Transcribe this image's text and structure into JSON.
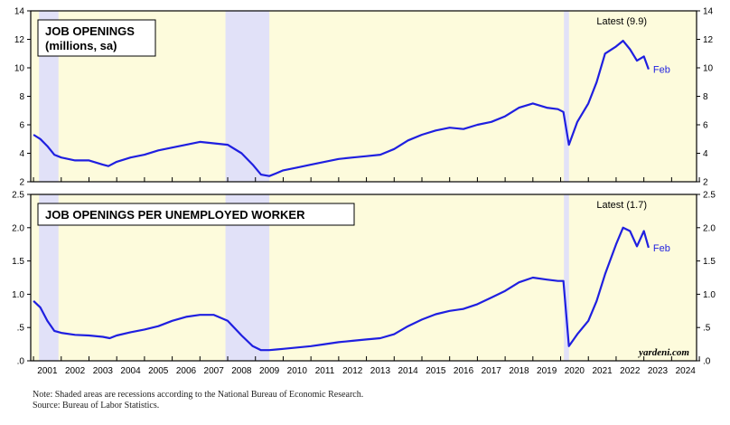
{
  "chart_data": [
    {
      "type": "line",
      "title": "JOB OPENINGS",
      "subtitle": "(millions, sa)",
      "latest_label": "Latest (9.9)",
      "end_label": "Feb",
      "ylim": [
        2,
        14
      ],
      "yticks": [
        "2",
        "4",
        "6",
        "8",
        "10",
        "12",
        "14"
      ],
      "line_color": "#1f1fe0",
      "background_color": "#fdfbdc",
      "recession_color": "#e1e1f8",
      "series": [
        {
          "x": [
            2001.0,
            2001.25,
            2001.5,
            2001.75,
            2002.0,
            2002.5,
            2003.0,
            2003.5,
            2003.7,
            2004.0,
            2004.5,
            2005.0,
            2005.5,
            2006.0,
            2006.5,
            2007.0,
            2007.5,
            2008.0,
            2008.5,
            2008.9,
            2009.2,
            2009.5,
            2009.75,
            2010.0,
            2010.5,
            2011.0,
            2011.5,
            2012.0,
            2012.5,
            2013.0,
            2013.5,
            2014.0,
            2014.5,
            2015.0,
            2015.5,
            2016.0,
            2016.5,
            2017.0,
            2017.5,
            2018.0,
            2018.5,
            2019.0,
            2019.5,
            2019.9,
            2020.1,
            2020.3,
            2020.6,
            2021.0,
            2021.3,
            2021.6,
            2022.0,
            2022.25,
            2022.5,
            2022.75,
            2023.0,
            2023.17
          ],
          "y": [
            5.3,
            5.0,
            4.5,
            3.9,
            3.7,
            3.5,
            3.5,
            3.2,
            3.1,
            3.4,
            3.7,
            3.9,
            4.2,
            4.4,
            4.6,
            4.8,
            4.7,
            4.6,
            4.0,
            3.2,
            2.5,
            2.4,
            2.6,
            2.8,
            3.0,
            3.2,
            3.4,
            3.6,
            3.7,
            3.8,
            3.9,
            4.3,
            4.9,
            5.3,
            5.6,
            5.8,
            5.7,
            6.0,
            6.2,
            6.6,
            7.2,
            7.5,
            7.2,
            7.1,
            6.9,
            4.6,
            6.2,
            7.5,
            9.0,
            11.0,
            11.5,
            11.9,
            11.3,
            10.5,
            10.8,
            9.9
          ]
        }
      ]
    },
    {
      "type": "line",
      "title": "JOB OPENINGS PER UNEMPLOYED WORKER",
      "latest_label": "Latest (1.7)",
      "end_label": "Feb",
      "ylim": [
        0,
        2.5
      ],
      "yticks": [
        ".0",
        ".5",
        "1.0",
        "1.5",
        "2.0",
        "2.5"
      ],
      "line_color": "#1f1fe0",
      "background_color": "#fdfbdc",
      "recession_color": "#e1e1f8",
      "series": [
        {
          "x": [
            2001.0,
            2001.25,
            2001.5,
            2001.75,
            2002.0,
            2002.5,
            2003.0,
            2003.5,
            2003.75,
            2004.0,
            2004.5,
            2005.0,
            2005.5,
            2006.0,
            2006.5,
            2007.0,
            2007.5,
            2008.0,
            2008.5,
            2008.9,
            2009.2,
            2009.5,
            2009.75,
            2010.0,
            2010.5,
            2011.0,
            2011.5,
            2012.0,
            2012.5,
            2013.0,
            2013.5,
            2014.0,
            2014.5,
            2015.0,
            2015.5,
            2016.0,
            2016.5,
            2017.0,
            2017.5,
            2018.0,
            2018.5,
            2019.0,
            2019.5,
            2019.9,
            2020.1,
            2020.3,
            2020.6,
            2021.0,
            2021.3,
            2021.6,
            2022.0,
            2022.25,
            2022.5,
            2022.75,
            2023.0,
            2023.17
          ],
          "y": [
            0.9,
            0.8,
            0.6,
            0.45,
            0.42,
            0.39,
            0.38,
            0.36,
            0.34,
            0.38,
            0.43,
            0.47,
            0.52,
            0.6,
            0.66,
            0.69,
            0.69,
            0.6,
            0.38,
            0.22,
            0.16,
            0.16,
            0.17,
            0.18,
            0.2,
            0.22,
            0.25,
            0.28,
            0.3,
            0.32,
            0.34,
            0.4,
            0.52,
            0.62,
            0.7,
            0.75,
            0.78,
            0.85,
            0.95,
            1.05,
            1.18,
            1.25,
            1.22,
            1.2,
            1.2,
            0.22,
            0.4,
            0.6,
            0.9,
            1.3,
            1.75,
            2.0,
            1.95,
            1.72,
            1.95,
            1.7
          ]
        }
      ]
    }
  ],
  "recessions": [
    [
      2001.2,
      2001.9
    ],
    [
      2007.92,
      2009.5
    ],
    [
      2020.12,
      2020.3
    ]
  ],
  "x_tick_labels": [
    "2001",
    "2002",
    "2003",
    "2004",
    "2005",
    "2006",
    "2007",
    "2008",
    "2009",
    "2010",
    "2011",
    "2012",
    "2013",
    "2014",
    "2015",
    "2016",
    "2017",
    "2018",
    "2019",
    "2020",
    "2021",
    "2022",
    "2023",
    "2024"
  ],
  "xlim": [
    2000.9,
    2024.9
  ],
  "watermark": "yardeni.com",
  "notes": {
    "note": "Note: Shaded areas are recessions according to the National Bureau of Economic Research.",
    "source": "Source: Bureau of Labor Statistics."
  }
}
